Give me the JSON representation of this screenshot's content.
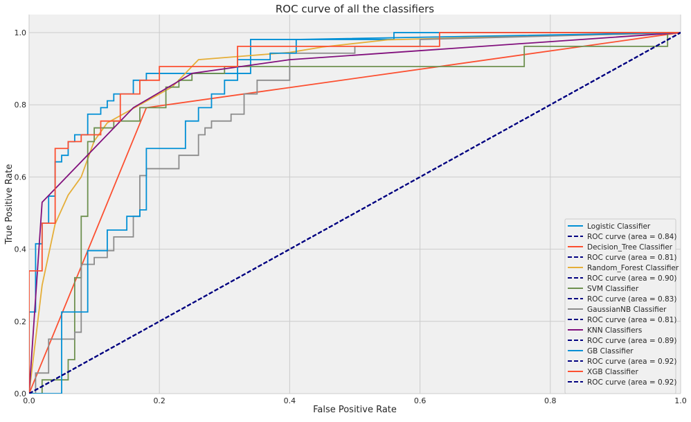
{
  "chart_data": {
    "type": "line",
    "title": "ROC curve of all the classifiers",
    "xlabel": "False Positive Rate",
    "ylabel": "True Positive Rate",
    "xlim": [
      0.0,
      1.0
    ],
    "ylim": [
      0.0,
      1.05
    ],
    "xticks": [
      "0.0",
      "0.2",
      "0.4",
      "0.6",
      "0.8",
      "1.0"
    ],
    "yticks": [
      "0.0",
      "0.2",
      "0.4",
      "0.6",
      "0.8",
      "1.0"
    ],
    "grid": true,
    "legend_position": "lower right",
    "series": [
      {
        "name": "Logistic Classifier",
        "color": "#008fd5",
        "dash": false,
        "step": true,
        "x": [
          0.0,
          0.0,
          0.01,
          0.01,
          0.02,
          0.02,
          0.03,
          0.03,
          0.04,
          0.04,
          0.05,
          0.05,
          0.06,
          0.06,
          0.07,
          0.07,
          0.08,
          0.08,
          0.09,
          0.09,
          0.1,
          0.1,
          0.11,
          0.11,
          0.12,
          0.12,
          0.13,
          0.13,
          0.14,
          0.14,
          0.16,
          0.16,
          0.18,
          0.18,
          0.34,
          0.34,
          0.56,
          0.56,
          1.0
        ],
        "y": [
          0.0,
          0.226,
          0.226,
          0.415,
          0.415,
          0.472,
          0.472,
          0.547,
          0.547,
          0.642,
          0.642,
          0.66,
          0.66,
          0.698,
          0.698,
          0.717,
          0.717,
          0.717,
          0.717,
          0.774,
          0.774,
          0.774,
          0.774,
          0.792,
          0.792,
          0.811,
          0.811,
          0.83,
          0.83,
          0.83,
          0.83,
          0.868,
          0.868,
          0.887,
          0.887,
          0.981,
          0.981,
          1.0,
          1.0
        ]
      },
      {
        "name": "ROC curve (area = 0.84)",
        "color": "#000080",
        "dash": true,
        "x": [
          0.0,
          1.0
        ],
        "y": [
          0.0,
          1.0
        ]
      },
      {
        "name": "Decision_Tree Classifier",
        "color": "#fc4f30",
        "dash": false,
        "step": false,
        "x": [
          0.0,
          0.18,
          1.0
        ],
        "y": [
          0.0,
          0.792,
          1.0
        ]
      },
      {
        "name": "ROC curve (area = 0.81)",
        "color": "#000080",
        "dash": true,
        "x": [
          0.0,
          1.0
        ],
        "y": [
          0.0,
          1.0
        ]
      },
      {
        "name": "Random_Forest Classifier",
        "color": "#e5ae38",
        "dash": false,
        "step": false,
        "x": [
          0.0,
          0.02,
          0.04,
          0.06,
          0.08,
          0.1,
          0.12,
          0.17,
          0.22,
          0.26,
          0.33,
          0.4,
          0.45,
          0.5,
          0.55,
          0.65,
          0.75,
          0.9,
          1.0
        ],
        "y": [
          0.0,
          0.3,
          0.47,
          0.55,
          0.6,
          0.7,
          0.75,
          0.8,
          0.85,
          0.925,
          0.935,
          0.945,
          0.96,
          0.97,
          0.98,
          0.985,
          0.99,
          0.995,
          1.0
        ]
      },
      {
        "name": "ROC curve (area = 0.90)",
        "color": "#000080",
        "dash": true,
        "x": [
          0.0,
          1.0
        ],
        "y": [
          0.0,
          1.0
        ]
      },
      {
        "name": "SVM Classifier",
        "color": "#6d904f",
        "dash": false,
        "step": true,
        "x": [
          0.0,
          0.0,
          0.02,
          0.02,
          0.06,
          0.06,
          0.07,
          0.07,
          0.08,
          0.08,
          0.09,
          0.09,
          0.1,
          0.1,
          0.13,
          0.13,
          0.17,
          0.17,
          0.21,
          0.21,
          0.23,
          0.23,
          0.25,
          0.25,
          0.3,
          0.3,
          0.76,
          0.76,
          0.98,
          0.98,
          1.0
        ],
        "y": [
          0.0,
          0.0,
          0.0,
          0.038,
          0.038,
          0.094,
          0.094,
          0.321,
          0.321,
          0.491,
          0.491,
          0.698,
          0.698,
          0.736,
          0.736,
          0.755,
          0.755,
          0.792,
          0.792,
          0.849,
          0.849,
          0.868,
          0.868,
          0.887,
          0.887,
          0.906,
          0.906,
          0.962,
          0.962,
          1.0,
          1.0
        ]
      },
      {
        "name": "ROC curve (area = 0.83)",
        "color": "#000080",
        "dash": true,
        "x": [
          0.0,
          1.0
        ],
        "y": [
          0.0,
          1.0
        ]
      },
      {
        "name": "GaussianNB Classifier",
        "color": "#8b8b8b",
        "dash": false,
        "step": true,
        "x": [
          0.0,
          0.0,
          0.01,
          0.01,
          0.03,
          0.03,
          0.05,
          0.05,
          0.07,
          0.07,
          0.08,
          0.08,
          0.1,
          0.1,
          0.12,
          0.12,
          0.13,
          0.13,
          0.15,
          0.15,
          0.16,
          0.16,
          0.17,
          0.17,
          0.18,
          0.18,
          0.23,
          0.23,
          0.26,
          0.26,
          0.27,
          0.27,
          0.28,
          0.28,
          0.31,
          0.31,
          0.33,
          0.33,
          0.35,
          0.35,
          0.4,
          0.4,
          0.5,
          0.5,
          0.6,
          0.6,
          1.0
        ],
        "y": [
          0.0,
          0.0,
          0.0,
          0.057,
          0.057,
          0.151,
          0.151,
          0.151,
          0.151,
          0.17,
          0.17,
          0.358,
          0.358,
          0.377,
          0.377,
          0.396,
          0.396,
          0.434,
          0.434,
          0.434,
          0.434,
          0.491,
          0.491,
          0.604,
          0.604,
          0.623,
          0.623,
          0.66,
          0.66,
          0.717,
          0.717,
          0.736,
          0.736,
          0.755,
          0.755,
          0.774,
          0.774,
          0.83,
          0.83,
          0.868,
          0.868,
          0.943,
          0.943,
          0.962,
          0.962,
          0.981,
          1.0
        ]
      },
      {
        "name": "ROC curve (area = 0.81)",
        "color": "#000080",
        "dash": true,
        "x": [
          0.0,
          1.0
        ],
        "y": [
          0.0,
          1.0
        ]
      },
      {
        "name": "KNN Classifiers",
        "color": "#810f7c",
        "dash": false,
        "step": false,
        "x": [
          0.0,
          0.02,
          0.16,
          0.25,
          0.4,
          1.0
        ],
        "y": [
          0.0,
          0.53,
          0.792,
          0.887,
          0.925,
          1.0
        ]
      },
      {
        "name": "ROC curve (area = 0.89)",
        "color": "#000080",
        "dash": true,
        "x": [
          0.0,
          1.0
        ],
        "y": [
          0.0,
          1.0
        ]
      },
      {
        "name": "GB Classifier",
        "color": "#008fd5",
        "dash": false,
        "step": true,
        "x": [
          0.0,
          0.0,
          0.05,
          0.05,
          0.09,
          0.09,
          0.12,
          0.12,
          0.15,
          0.15,
          0.17,
          0.17,
          0.18,
          0.18,
          0.24,
          0.24,
          0.26,
          0.26,
          0.28,
          0.28,
          0.3,
          0.3,
          0.32,
          0.32,
          0.37,
          0.37,
          0.41,
          0.41,
          1.0
        ],
        "y": [
          0.0,
          0.0,
          0.0,
          0.226,
          0.226,
          0.396,
          0.396,
          0.453,
          0.453,
          0.491,
          0.491,
          0.509,
          0.509,
          0.679,
          0.679,
          0.755,
          0.755,
          0.792,
          0.792,
          0.83,
          0.83,
          0.868,
          0.868,
          0.925,
          0.925,
          0.943,
          0.943,
          0.981,
          1.0
        ]
      },
      {
        "name": "ROC curve (area = 0.92)",
        "color": "#000080",
        "dash": true,
        "x": [
          0.0,
          1.0
        ],
        "y": [
          0.0,
          1.0
        ]
      },
      {
        "name": "XGB Classifier",
        "color": "#fc4f30",
        "dash": false,
        "step": true,
        "x": [
          0.0,
          0.0,
          0.02,
          0.02,
          0.03,
          0.03,
          0.04,
          0.04,
          0.06,
          0.06,
          0.08,
          0.08,
          0.11,
          0.11,
          0.14,
          0.14,
          0.17,
          0.17,
          0.2,
          0.2,
          0.32,
          0.32,
          0.37,
          0.37,
          0.63,
          0.63,
          1.0
        ],
        "y": [
          0.0,
          0.34,
          0.34,
          0.472,
          0.472,
          0.472,
          0.472,
          0.679,
          0.679,
          0.698,
          0.698,
          0.717,
          0.717,
          0.755,
          0.755,
          0.83,
          0.83,
          0.868,
          0.868,
          0.906,
          0.906,
          0.962,
          0.962,
          0.962,
          0.962,
          1.0,
          1.0
        ]
      },
      {
        "name": "ROC curve (area = 0.92)",
        "color": "#000080",
        "dash": true,
        "x": [
          0.0,
          1.0
        ],
        "y": [
          0.0,
          1.0
        ]
      }
    ]
  }
}
